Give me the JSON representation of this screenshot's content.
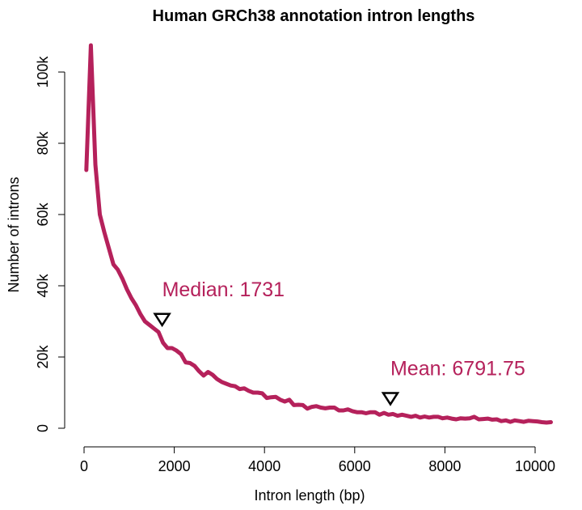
{
  "chart_data": {
    "type": "line",
    "title": "Human GRCh38 annotation intron lengths",
    "xlabel": "Intron length (bp)",
    "ylabel": "Number of introns",
    "xlim": [
      0,
      10400
    ],
    "ylim": [
      0,
      108000
    ],
    "x_ticks": [
      0,
      2000,
      4000,
      6000,
      8000,
      10000
    ],
    "x_tick_labels": [
      "0",
      "2000",
      "4000",
      "6000",
      "8000",
      "10000"
    ],
    "y_ticks": [
      0,
      20000,
      40000,
      60000,
      80000,
      100000
    ],
    "y_tick_labels": [
      "0",
      "20k",
      "40k",
      "60k",
      "80k",
      "100k"
    ],
    "grid": false,
    "line_color": "#b5215b",
    "series": [
      {
        "x": [
          50,
          150,
          250,
          350,
          450,
          550,
          650,
          750,
          850,
          950,
          1050,
          1150,
          1250,
          1350,
          1450,
          1550,
          1650,
          1750,
          1850,
          1950,
          2050,
          2150,
          2250,
          2350,
          2450,
          2550,
          2650,
          2750,
          2850,
          2950,
          3050,
          3150,
          3250,
          3350,
          3450,
          3550,
          3650,
          3750,
          3850,
          3950,
          4050,
          4150,
          4250,
          4350,
          4450,
          4550,
          4650,
          4750,
          4850,
          4950,
          5050,
          5150,
          5250,
          5350,
          5450,
          5550,
          5650,
          5750,
          5850,
          5950,
          6050,
          6150,
          6250,
          6350,
          6450,
          6550,
          6650,
          6750,
          6850,
          6950,
          7050,
          7150,
          7250,
          7350,
          7450,
          7550,
          7650,
          7750,
          7850,
          7950,
          8050,
          8150,
          8250,
          8350,
          8450,
          8550,
          8650,
          8750,
          8850,
          8950,
          9050,
          9150,
          9250,
          9350,
          9450,
          9550,
          9650,
          9750,
          9850,
          9950,
          10050,
          10150,
          10250,
          10350
        ],
        "values": [
          72500,
          107500,
          74000,
          60000,
          55000,
          50500,
          46000,
          44500,
          42000,
          39000,
          36500,
          34500,
          32000,
          30000,
          29000,
          28000,
          27000,
          24000,
          22500,
          22500,
          21800,
          20800,
          18500,
          18300,
          17500,
          16000,
          14800,
          15800,
          15000,
          13800,
          13000,
          12500,
          12000,
          11800,
          11000,
          11200,
          10500,
          10000,
          10000,
          9800,
          8500,
          8700,
          8800,
          8000,
          7500,
          8000,
          6500,
          6600,
          6500,
          5500,
          6000,
          6200,
          5800,
          5600,
          5800,
          5800,
          5000,
          5000,
          5300,
          4800,
          4500,
          4500,
          4200,
          4500,
          4500,
          3800,
          4300,
          3800,
          4000,
          3500,
          3800,
          3500,
          3200,
          3500,
          3000,
          3300,
          3000,
          3200,
          3200,
          2800,
          3000,
          2700,
          2500,
          2800,
          2700,
          2800,
          3200,
          2500,
          2600,
          2700,
          2400,
          2500,
          2000,
          2200,
          1800,
          2200,
          2000,
          1800,
          2100,
          2000,
          1900,
          1700,
          1600,
          1700
        ]
      }
    ],
    "annotations": [
      {
        "label": "Median: 1731",
        "x": 1731,
        "y": 28000
      },
      {
        "label": "Mean: 6791.75",
        "x": 6791.75,
        "y": 5800
      }
    ]
  }
}
